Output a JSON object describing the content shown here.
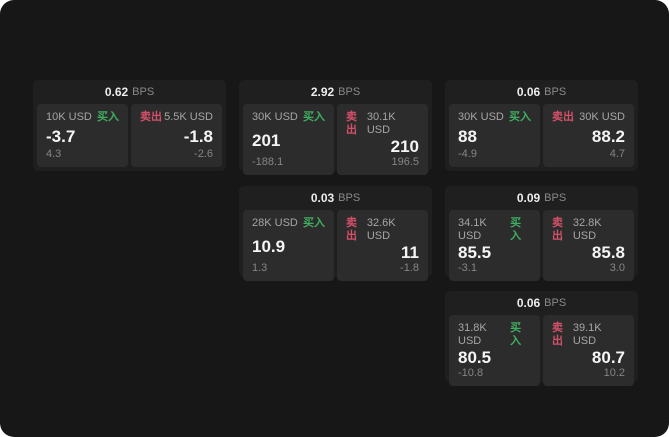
{
  "labels": {
    "buy": "买入",
    "sell": "卖出",
    "bps_unit": "BPS"
  },
  "colors": {
    "background": "#171717",
    "card": "#1f1f1f",
    "panel": "#2c2c2c",
    "buy": "#3fae60",
    "sell": "#d25068"
  },
  "cards": [
    {
      "bps": "0.62",
      "buy": {
        "size": "10K USD",
        "value": "-3.7",
        "sub": "4.3"
      },
      "sell": {
        "size": "5.5K USD",
        "value": "-1.8",
        "sub": "-2.6"
      }
    },
    {
      "bps": "2.92",
      "buy": {
        "size": "30K USD",
        "value": "201",
        "sub": "-188.1"
      },
      "sell": {
        "size": "30.1K USD",
        "value": "210",
        "sub": "196.5"
      }
    },
    {
      "bps": "0.06",
      "buy": {
        "size": "30K USD",
        "value": "88",
        "sub": "-4.9"
      },
      "sell": {
        "size": "30K USD",
        "value": "88.2",
        "sub": "4.7"
      }
    },
    {
      "bps": "0.03",
      "buy": {
        "size": "28K USD",
        "value": "10.9",
        "sub": "1.3"
      },
      "sell": {
        "size": "32.6K USD",
        "value": "11",
        "sub": "-1.8"
      }
    },
    {
      "bps": "0.09",
      "buy": {
        "size": "34.1K USD",
        "value": "85.5",
        "sub": "-3.1"
      },
      "sell": {
        "size": "32.8K USD",
        "value": "85.8",
        "sub": "3.0"
      }
    },
    {
      "bps": "0.06",
      "buy": {
        "size": "31.8K USD",
        "value": "80.5",
        "sub": "-10.8"
      },
      "sell": {
        "size": "39.1K USD",
        "value": "80.7",
        "sub": "10.2"
      }
    }
  ]
}
